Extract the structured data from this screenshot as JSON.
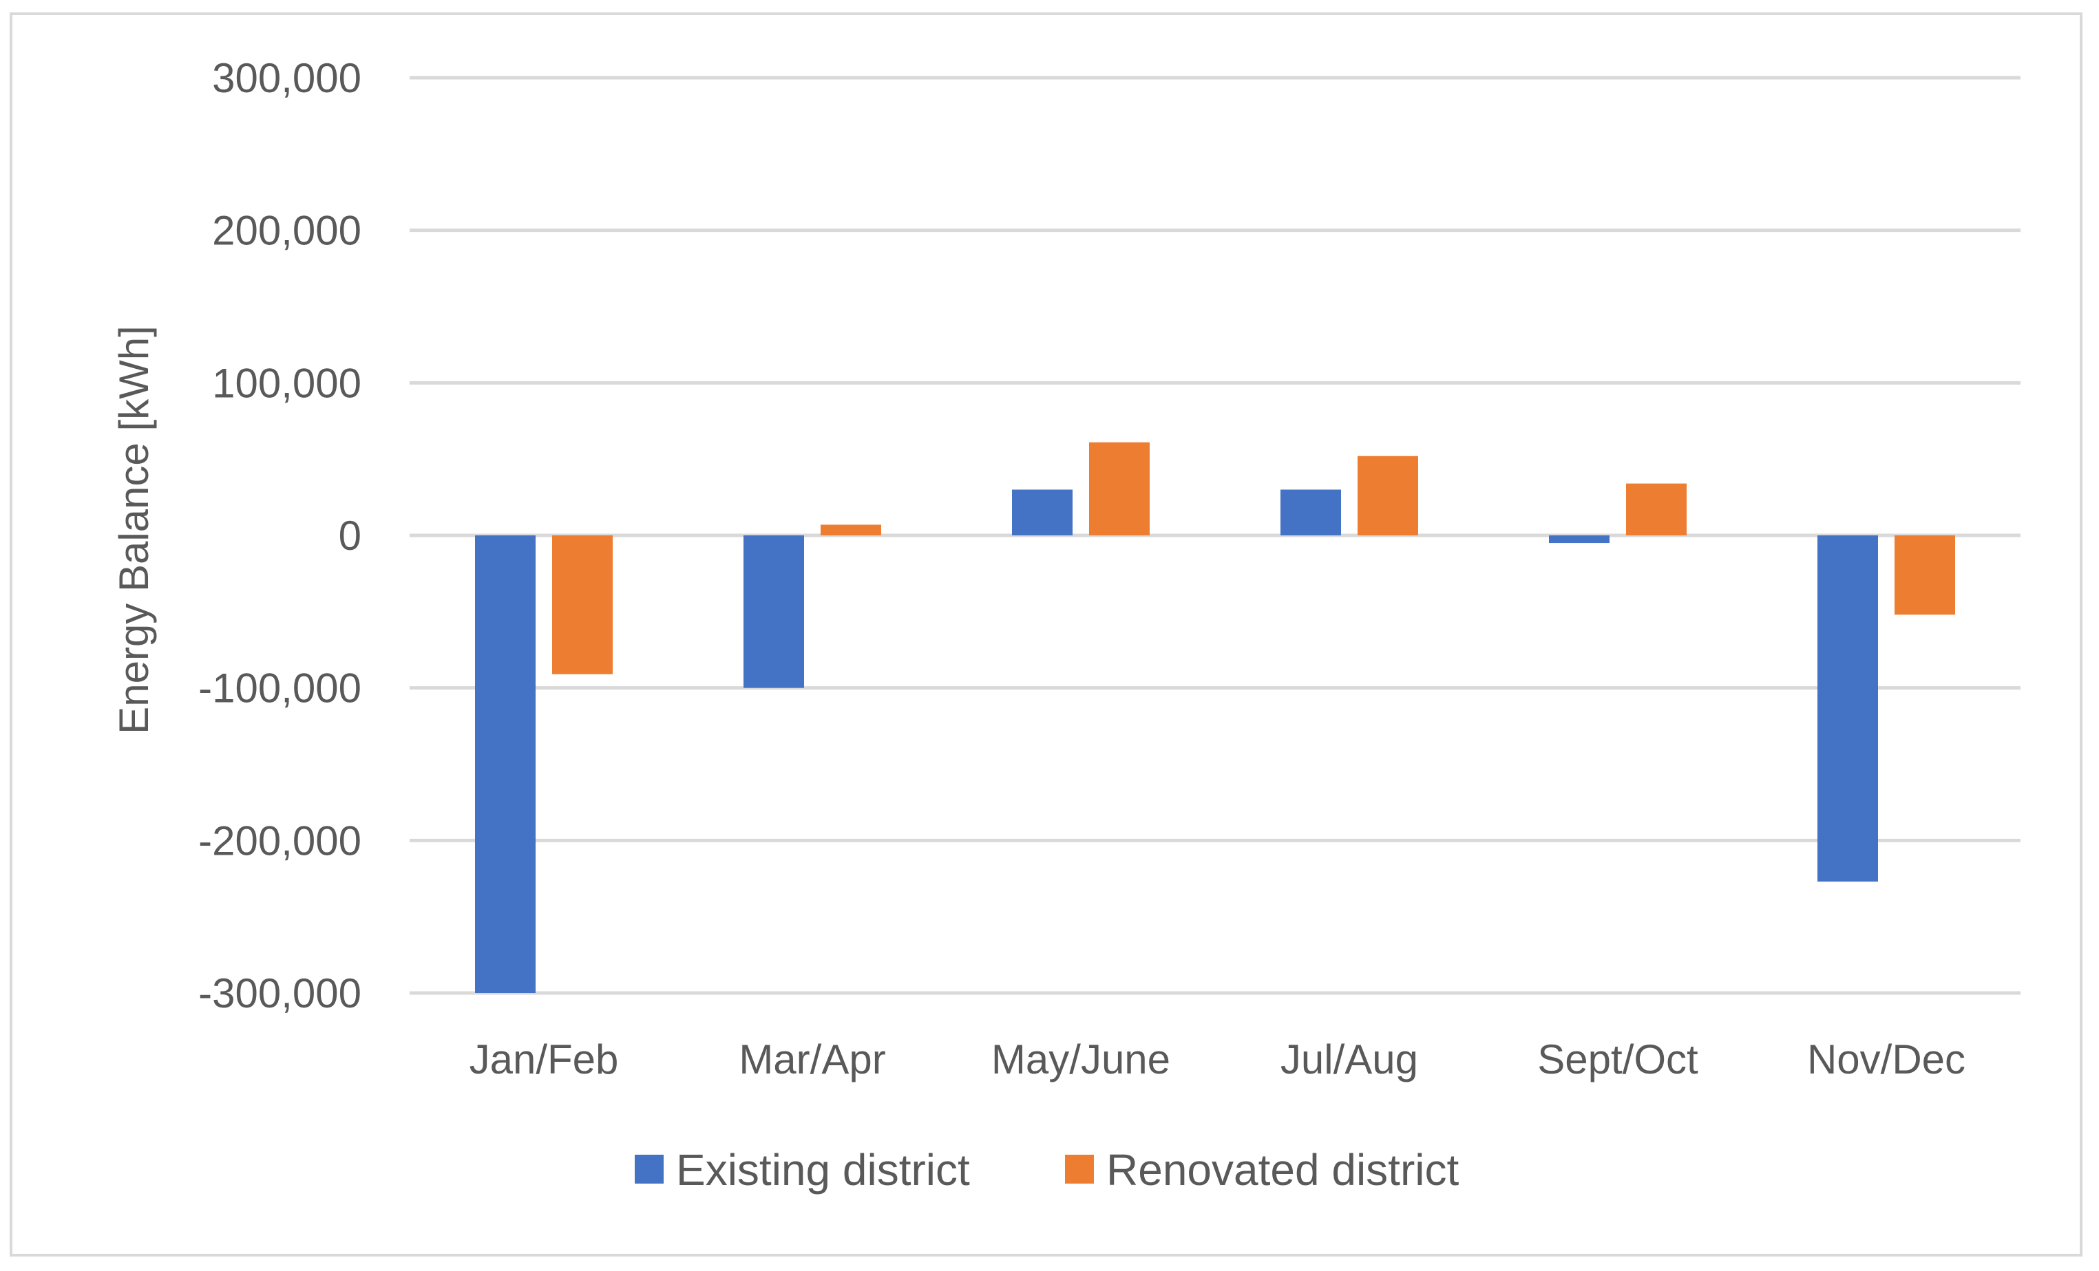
{
  "chart_data": {
    "type": "bar",
    "title": "",
    "xlabel": "",
    "ylabel": "Energy Balance [kWh]",
    "ylim": [
      -300000,
      300000
    ],
    "yticks": [
      300000,
      200000,
      100000,
      0,
      -100000,
      -200000,
      -300000
    ],
    "ytick_labels": [
      "300,000",
      "200,000",
      "100,000",
      "0",
      "-100,000",
      "-200,000",
      "-300,000"
    ],
    "grid": true,
    "legend_position": "bottom",
    "categories": [
      "Jan/Feb",
      "Mar/Apr",
      "May/June",
      "Jul/Aug",
      "Sept/Oct",
      "Nov/Dec"
    ],
    "series": [
      {
        "name": "Existing district",
        "color": "#4472c4",
        "values": [
          -300000,
          -100000,
          30000,
          30000,
          -5000,
          -227000
        ]
      },
      {
        "name": "Renovated district",
        "color": "#ed7d31",
        "values": [
          -91000,
          7000,
          61000,
          52000,
          34000,
          -52000
        ]
      }
    ]
  },
  "colors": {
    "gridline": "#d9d9d9",
    "text": "#595959",
    "border": "#d9d9d9"
  }
}
